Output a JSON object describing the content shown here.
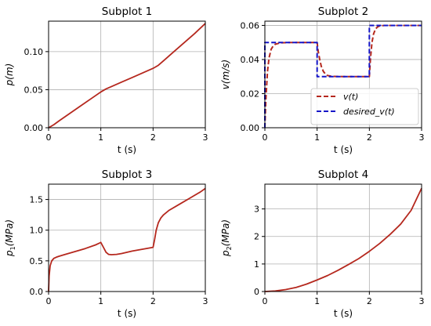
{
  "colors": {
    "line": "#b5281e",
    "desired": "#1515c8",
    "grid": "#b0b0b0"
  },
  "chart_data": [
    {
      "type": "line",
      "title": "Subplot 1",
      "xlabel": "t (s)",
      "ylabel": "p(m)",
      "xlim": [
        0,
        3
      ],
      "ylim": [
        0,
        0.14
      ],
      "xticks": [
        0,
        1,
        2,
        3
      ],
      "xtick_labels": [
        "0",
        "1",
        "2",
        "3"
      ],
      "yticks": [
        0,
        0.05,
        0.1
      ],
      "ytick_labels": [
        "0.00",
        "0.05",
        "0.10"
      ],
      "grid": true,
      "series": [
        {
          "style": "solid",
          "color": "#b5281e",
          "x": [
            0,
            0.1,
            0.2,
            0.4,
            0.6,
            0.8,
            1.0,
            1.1,
            1.2,
            1.4,
            1.6,
            1.8,
            2.0,
            2.1,
            2.2,
            2.4,
            2.6,
            2.8,
            3.0
          ],
          "y": [
            0,
            0.004,
            0.009,
            0.0185,
            0.028,
            0.0375,
            0.047,
            0.051,
            0.054,
            0.06,
            0.066,
            0.072,
            0.078,
            0.082,
            0.088,
            0.1,
            0.112,
            0.124,
            0.137
          ]
        }
      ]
    },
    {
      "type": "line",
      "title": "Subplot 2",
      "xlabel": "t (s)",
      "ylabel": "v(m/s)",
      "xlim": [
        0,
        3
      ],
      "ylim": [
        0,
        0.0625
      ],
      "xticks": [
        0,
        1,
        2,
        3
      ],
      "xtick_labels": [
        "0",
        "1",
        "2",
        "3"
      ],
      "yticks": [
        0,
        0.02,
        0.04,
        0.06
      ],
      "ytick_labels": [
        "0.00",
        "0.02",
        "0.04",
        "0.06"
      ],
      "grid": true,
      "legend": "lower-right",
      "series": [
        {
          "name": "v(t)",
          "style": "dashed",
          "color": "#b5281e",
          "x": [
            0,
            0.02,
            0.05,
            0.08,
            0.12,
            0.16,
            0.2,
            0.3,
            0.5,
            0.8,
            1.0,
            1.02,
            1.05,
            1.08,
            1.12,
            1.16,
            1.2,
            1.3,
            1.5,
            1.8,
            2.0,
            2.02,
            2.05,
            2.08,
            2.12,
            2.16,
            2.2,
            2.3,
            2.5,
            2.8,
            3.0
          ],
          "y": [
            0,
            0.017,
            0.033,
            0.041,
            0.046,
            0.048,
            0.049,
            0.0498,
            0.05,
            0.05,
            0.05,
            0.045,
            0.04,
            0.036,
            0.033,
            0.0315,
            0.0306,
            0.0301,
            0.03,
            0.03,
            0.03,
            0.04,
            0.05,
            0.055,
            0.058,
            0.0592,
            0.0597,
            0.06,
            0.06,
            0.06,
            0.06
          ]
        },
        {
          "name": "desired_v(t)",
          "style": "dashed",
          "color": "#1515c8",
          "x": [
            0,
            0,
            1,
            1,
            2,
            2,
            3
          ],
          "y": [
            0,
            0.05,
            0.05,
            0.03,
            0.03,
            0.06,
            0.06
          ]
        }
      ]
    },
    {
      "type": "line",
      "title": "Subplot 3",
      "xlabel": "t (s)",
      "ylabel": "p1(MPa)",
      "xlim": [
        0,
        3
      ],
      "ylim": [
        0,
        1.75
      ],
      "xticks": [
        0,
        1,
        2,
        3
      ],
      "xtick_labels": [
        "0",
        "1",
        "2",
        "3"
      ],
      "yticks": [
        0,
        0.5,
        1.0,
        1.5
      ],
      "ytick_labels": [
        "0.0",
        "0.5",
        "1.0",
        "1.5"
      ],
      "grid": true,
      "series": [
        {
          "style": "solid",
          "color": "#b5281e",
          "x": [
            0,
            0.01,
            0.03,
            0.06,
            0.1,
            0.15,
            0.2,
            0.3,
            0.5,
            0.7,
            0.9,
            1.0,
            1.05,
            1.1,
            1.15,
            1.2,
            1.3,
            1.4,
            1.6,
            1.8,
            2.0,
            2.03,
            2.06,
            2.1,
            2.15,
            2.2,
            2.3,
            2.5,
            2.7,
            2.9,
            3.0
          ],
          "y": [
            0,
            0.25,
            0.42,
            0.5,
            0.54,
            0.56,
            0.575,
            0.6,
            0.65,
            0.7,
            0.76,
            0.8,
            0.72,
            0.64,
            0.605,
            0.6,
            0.605,
            0.62,
            0.66,
            0.69,
            0.72,
            0.85,
            1.0,
            1.12,
            1.2,
            1.25,
            1.32,
            1.42,
            1.52,
            1.62,
            1.68
          ]
        }
      ]
    },
    {
      "type": "line",
      "title": "Subplot 4",
      "xlabel": "t (s)",
      "ylabel": "p2(MPa)",
      "xlim": [
        0,
        3
      ],
      "ylim": [
        0,
        3.9
      ],
      "xticks": [
        0,
        1,
        2,
        3
      ],
      "xtick_labels": [
        "0",
        "1",
        "2",
        "3"
      ],
      "yticks": [
        0,
        1,
        2,
        3
      ],
      "ytick_labels": [
        "0",
        "1",
        "2",
        "3"
      ],
      "grid": true,
      "series": [
        {
          "style": "solid",
          "color": "#b5281e",
          "x": [
            0,
            0.2,
            0.4,
            0.6,
            0.8,
            1.0,
            1.2,
            1.4,
            1.6,
            1.8,
            2.0,
            2.2,
            2.4,
            2.6,
            2.8,
            3.0
          ],
          "y": [
            0,
            0.02,
            0.07,
            0.15,
            0.27,
            0.42,
            0.58,
            0.77,
            0.98,
            1.2,
            1.46,
            1.75,
            2.08,
            2.45,
            2.95,
            3.75
          ]
        }
      ]
    }
  ]
}
